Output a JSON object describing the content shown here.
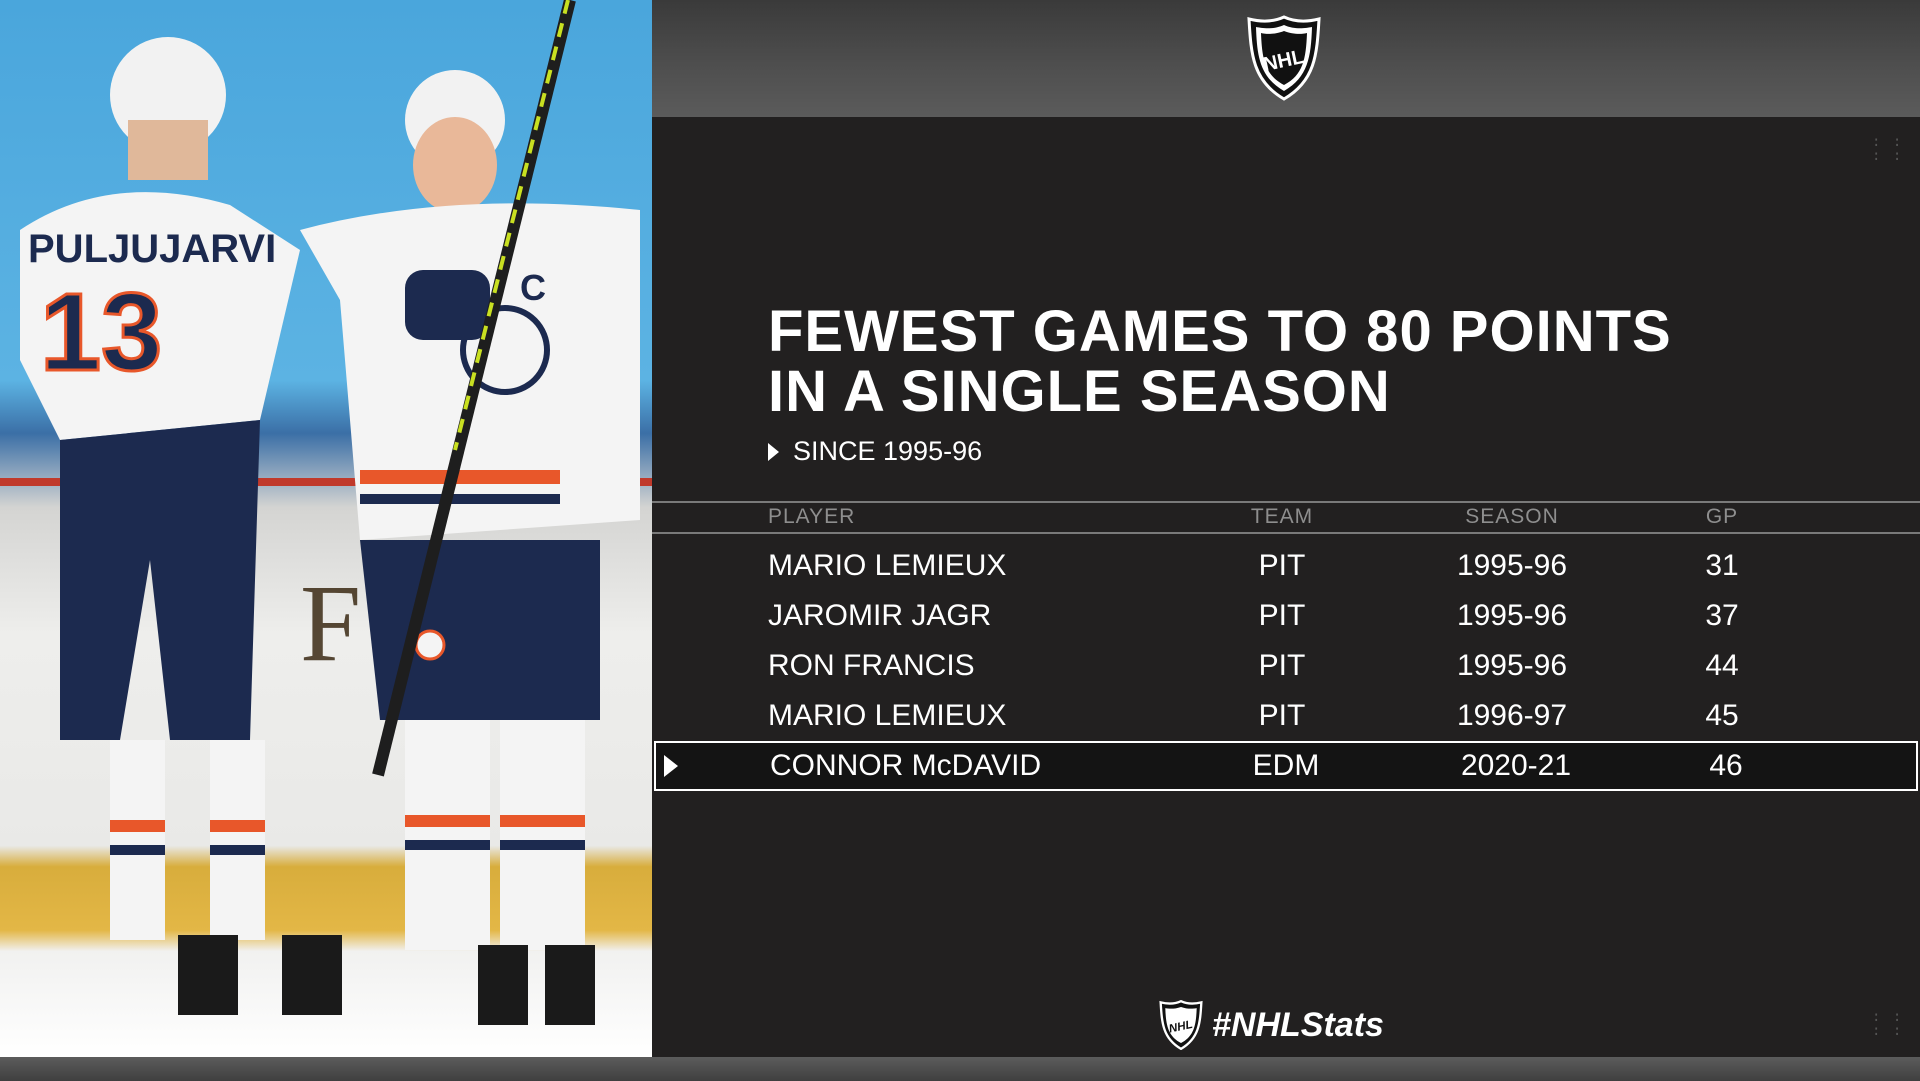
{
  "header": {
    "logo": "nhl-shield-logo"
  },
  "title": {
    "line1": "FEWEST GAMES TO 80 POINTS",
    "line2": "IN A SINGLE SEASON"
  },
  "subtitle": "SINCE 1995-96",
  "table": {
    "columns": [
      "PLAYER",
      "TEAM",
      "SEASON",
      "GP"
    ],
    "rows": [
      {
        "player": "MARIO LEMIEUX",
        "team": "PIT",
        "season": "1995-96",
        "gp": "31",
        "highlighted": false
      },
      {
        "player": "JAROMIR JAGR",
        "team": "PIT",
        "season": "1995-96",
        "gp": "37",
        "highlighted": false
      },
      {
        "player": "RON FRANCIS",
        "team": "PIT",
        "season": "1995-96",
        "gp": "44",
        "highlighted": false
      },
      {
        "player": "MARIO LEMIEUX",
        "team": "PIT",
        "season": "1996-97",
        "gp": "45",
        "highlighted": false
      },
      {
        "player": "CONNOR McDAVID",
        "team": "EDM",
        "season": "2020-21",
        "gp": "46",
        "highlighted": true
      }
    ]
  },
  "photo": {
    "jersey_left_name": "PULJUJARVI",
    "jersey_left_number": "13",
    "captain_letter": "C",
    "colors": {
      "oilers_navy": "#1c2a4f",
      "oilers_orange": "#e8572a",
      "jersey_white": "#f4f4f4",
      "ice_blue": "#5cb3e3"
    }
  },
  "footer": {
    "hashtag": "#NHLStats"
  },
  "colors": {
    "panel_bg": "#222020",
    "topbar_bg": "#4e4e4e",
    "text": "#ffffff",
    "header_text": "#8e8e8e",
    "highlight_border": "#ffffff"
  }
}
